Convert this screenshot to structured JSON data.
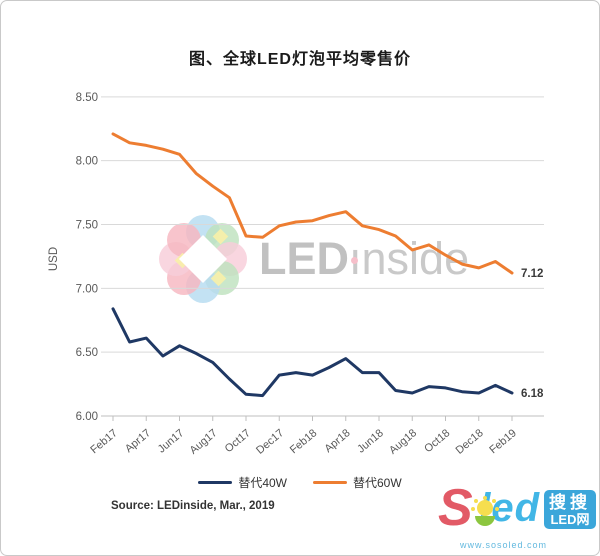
{
  "page": {
    "title": "图、全球LED灯泡平均零售价"
  },
  "chart_data": {
    "type": "line",
    "title": "图、全球LED灯泡平均零售价",
    "xlabel": "",
    "ylabel": "USD",
    "ylim": [
      6.0,
      8.5
    ],
    "yticks": [
      8.5,
      8.0,
      7.5,
      7.0,
      6.5,
      6.0
    ],
    "grid": true,
    "legend_position": "bottom",
    "x": [
      "Feb17",
      "Mar17",
      "Apr17",
      "May17",
      "Jun17",
      "Jul17",
      "Aug17",
      "Sep17",
      "Oct17",
      "Nov17",
      "Dec17",
      "Jan18",
      "Feb18",
      "Mar18",
      "Apr18",
      "May18",
      "Jun18",
      "Jul18",
      "Aug18",
      "Sep18",
      "Oct18",
      "Nov18",
      "Dec18",
      "Jan19",
      "Feb19"
    ],
    "x_tick_labels": [
      "Feb17",
      "Apr17",
      "Jun17",
      "Aug17",
      "Oct17",
      "Dec17",
      "Feb18",
      "Apr18",
      "Jun18",
      "Aug18",
      "Oct18",
      "Dec18",
      "Feb19"
    ],
    "series": [
      {
        "name": "替代40W",
        "color": "#1F3864",
        "values": [
          6.84,
          6.58,
          6.61,
          6.47,
          6.55,
          6.49,
          6.42,
          6.29,
          6.17,
          6.16,
          6.32,
          6.34,
          6.32,
          6.38,
          6.45,
          6.34,
          6.34,
          6.2,
          6.18,
          6.23,
          6.22,
          6.19,
          6.18,
          6.24,
          6.18
        ],
        "end_label": "6.18"
      },
      {
        "name": "替代60W",
        "color": "#ED7D31",
        "values": [
          8.21,
          8.14,
          8.12,
          8.09,
          8.05,
          7.9,
          7.8,
          7.71,
          7.41,
          7.4,
          7.49,
          7.52,
          7.53,
          7.57,
          7.6,
          7.49,
          7.46,
          7.41,
          7.3,
          7.34,
          7.26,
          7.19,
          7.16,
          7.21,
          7.12
        ],
        "end_label": "7.12"
      }
    ],
    "colors": {
      "gridline": "#D9D9D9",
      "axis": "#BFBFBF",
      "tick_text": "#595959",
      "end_label_text": "#3a3a3a"
    }
  },
  "source": {
    "text": "Source: LEDinside, Mar., 2019"
  },
  "watermark": {
    "text_bold": "LED",
    "text_i": "ı",
    "text_rest": "nside"
  },
  "soled_logo": {
    "brand_s": "S",
    "brand_rest": "led",
    "badge_line1": "搜搜",
    "badge_line2": "LED网",
    "url": "www.sosoled.com"
  }
}
